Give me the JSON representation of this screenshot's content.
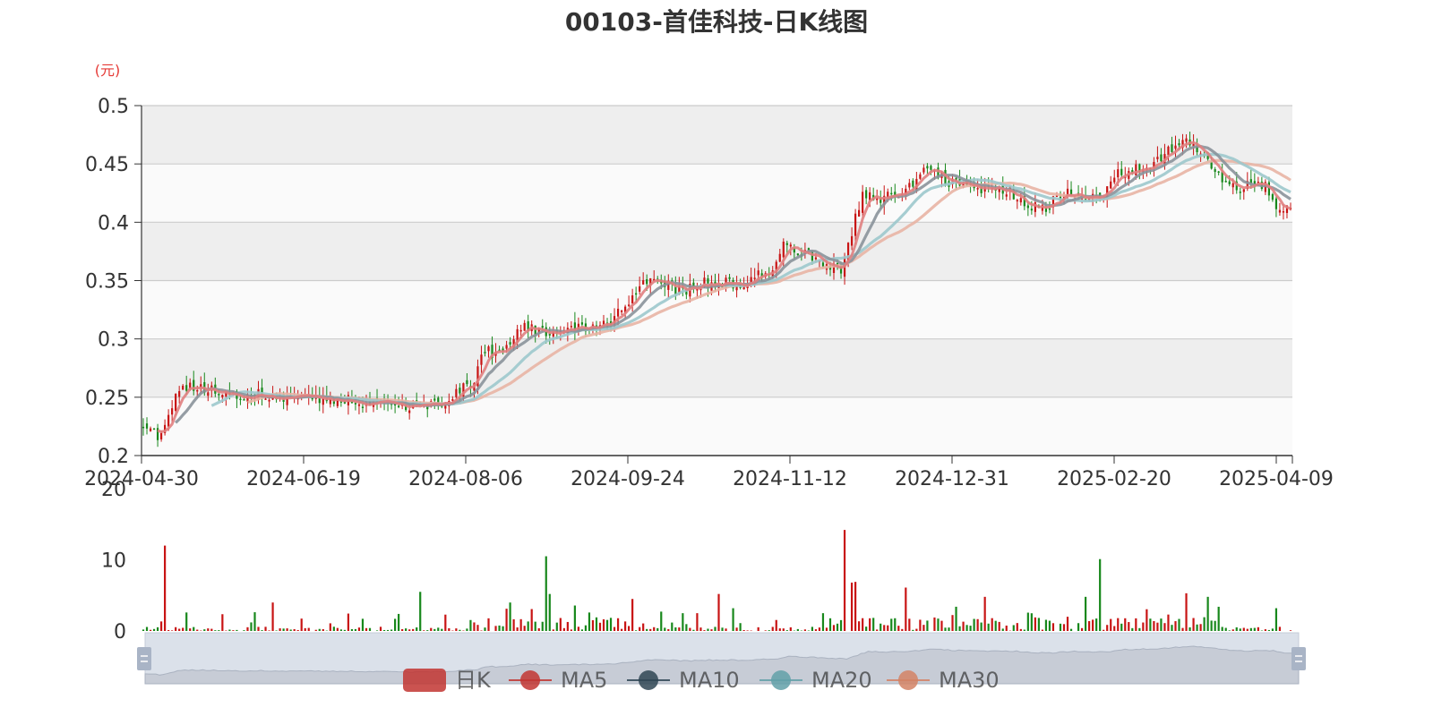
{
  "chart_data": {
    "type": "candlestick",
    "title": "00103-首佳科技-日K线图",
    "y_unit": "(元)",
    "ylim": [
      0.2,
      0.5
    ],
    "y_ticks": [
      "0.2",
      "0.25",
      "0.3",
      "0.35",
      "0.4",
      "0.45",
      "0.5"
    ],
    "x_ticks": [
      "2024-04-30",
      "2024-06-19",
      "2024-08-06",
      "2024-09-24",
      "2024-11-12",
      "2024-12-31",
      "2025-02-20",
      "2025-04-09"
    ],
    "volume_ylim": [
      0,
      20
    ],
    "volume_ticks": [
      "0",
      "10",
      "20"
    ],
    "legend": [
      "日K",
      "MA5",
      "MA10",
      "MA20",
      "MA30"
    ],
    "colors": {
      "up": "#c81414",
      "down": "#18881c",
      "ma5": "#e08080",
      "ma10": "#8a929a",
      "ma20": "#9cc8cc",
      "ma30": "#e8b4a4",
      "legend_k": "#c23531",
      "legend_ma5": "#c23531",
      "legend_ma10": "#2f4554",
      "legend_ma20": "#61a0a8",
      "legend_ma30": "#d48265"
    },
    "price_path": [
      [
        0,
        0.225
      ],
      [
        4,
        0.218
      ],
      [
        8,
        0.24
      ],
      [
        10,
        0.26
      ],
      [
        16,
        0.258
      ],
      [
        24,
        0.253
      ],
      [
        33,
        0.252
      ],
      [
        45,
        0.25
      ],
      [
        55,
        0.248
      ],
      [
        66,
        0.244
      ],
      [
        77,
        0.242
      ],
      [
        83,
        0.243
      ],
      [
        87,
        0.255
      ],
      [
        92,
        0.265
      ],
      [
        95,
        0.29
      ],
      [
        100,
        0.285
      ],
      [
        104,
        0.31
      ],
      [
        114,
        0.305
      ],
      [
        124,
        0.31
      ],
      [
        130,
        0.315
      ],
      [
        135,
        0.33
      ],
      [
        138,
        0.345
      ],
      [
        142,
        0.35
      ],
      [
        150,
        0.34
      ],
      [
        156,
        0.348
      ],
      [
        166,
        0.348
      ],
      [
        174,
        0.358
      ],
      [
        178,
        0.38
      ],
      [
        185,
        0.372
      ],
      [
        194,
        0.36
      ],
      [
        200,
        0.425
      ],
      [
        206,
        0.42
      ],
      [
        212,
        0.43
      ],
      [
        218,
        0.445
      ],
      [
        224,
        0.435
      ],
      [
        232,
        0.43
      ],
      [
        240,
        0.428
      ],
      [
        246,
        0.415
      ],
      [
        250,
        0.41
      ],
      [
        256,
        0.425
      ],
      [
        266,
        0.42
      ],
      [
        270,
        0.44
      ],
      [
        275,
        0.445
      ],
      [
        280,
        0.45
      ],
      [
        287,
        0.465
      ],
      [
        290,
        0.47
      ],
      [
        295,
        0.458
      ],
      [
        299,
        0.44
      ],
      [
        305,
        0.43
      ],
      [
        312,
        0.432
      ],
      [
        316,
        0.41
      ],
      [
        318,
        0.41
      ]
    ],
    "volume_spikes": [
      [
        6,
        12
      ],
      [
        12,
        2.6
      ],
      [
        36,
        4
      ],
      [
        77,
        5.5
      ],
      [
        84,
        2.3
      ],
      [
        102,
        4
      ],
      [
        112,
        10.5
      ],
      [
        113,
        5.2
      ],
      [
        136,
        4.5
      ],
      [
        150,
        2.5
      ],
      [
        160,
        5.2
      ],
      [
        164,
        3.2
      ],
      [
        195,
        14.2
      ],
      [
        197,
        6.8
      ],
      [
        198,
        6.9
      ],
      [
        212,
        6.1
      ],
      [
        234,
        4.8
      ],
      [
        262,
        4.8
      ],
      [
        266,
        10.1
      ],
      [
        290,
        5.3
      ],
      [
        296,
        4.8
      ],
      [
        315,
        3.2
      ]
    ]
  }
}
